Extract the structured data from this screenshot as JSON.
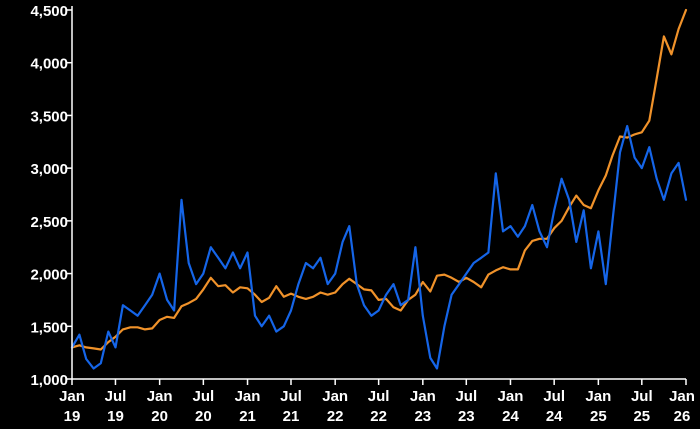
{
  "chart_data": {
    "type": "line",
    "title": "",
    "xlabel": "",
    "ylabel": "",
    "xlim": [
      "2019-01-01",
      "2026-01-01"
    ],
    "ylim": [
      1000,
      4500
    ],
    "grid": false,
    "legend": "none",
    "y_ticks": [
      {
        "value": 1000,
        "label": "1,000"
      },
      {
        "value": 1500,
        "label": "1,500"
      },
      {
        "value": 2000,
        "label": "2,000"
      },
      {
        "value": 2500,
        "label": "2,500"
      },
      {
        "value": 3000,
        "label": "3,000"
      },
      {
        "value": 3500,
        "label": "3,500"
      },
      {
        "value": 4000,
        "label": "4,000"
      },
      {
        "value": 4500,
        "label": "4,500"
      }
    ],
    "x_ticks": [
      {
        "date": "2019-01-01",
        "month": "Jan",
        "year": "19"
      },
      {
        "date": "2019-07-01",
        "month": "Jul",
        "year": "19"
      },
      {
        "date": "2020-01-01",
        "month": "Jan",
        "year": "20"
      },
      {
        "date": "2020-07-01",
        "month": "Jul",
        "year": "20"
      },
      {
        "date": "2021-01-01",
        "month": "Jan",
        "year": "21"
      },
      {
        "date": "2021-07-01",
        "month": "Jul",
        "year": "21"
      },
      {
        "date": "2022-01-01",
        "month": "Jan",
        "year": "22"
      },
      {
        "date": "2022-07-01",
        "month": "Jul",
        "year": "22"
      },
      {
        "date": "2023-01-01",
        "month": "Jan",
        "year": "23"
      },
      {
        "date": "2023-07-01",
        "month": "Jul",
        "year": "23"
      },
      {
        "date": "2024-01-01",
        "month": "Jan",
        "year": "24"
      },
      {
        "date": "2024-07-01",
        "month": "Jul",
        "year": "24"
      },
      {
        "date": "2025-01-01",
        "month": "Jan",
        "year": "25"
      },
      {
        "date": "2025-07-01",
        "month": "Jul",
        "year": "25"
      },
      {
        "date": "2026-01-01",
        "month": "Jan",
        "year": "26"
      }
    ],
    "series": [
      {
        "color": "#f0922a",
        "points": [
          [
            "2019-01-01",
            1300
          ],
          [
            "2019-02-01",
            1320
          ],
          [
            "2019-03-01",
            1300
          ],
          [
            "2019-04-01",
            1290
          ],
          [
            "2019-05-01",
            1280
          ],
          [
            "2019-06-01",
            1350
          ],
          [
            "2019-07-01",
            1400
          ],
          [
            "2019-08-01",
            1470
          ],
          [
            "2019-09-01",
            1490
          ],
          [
            "2019-10-01",
            1490
          ],
          [
            "2019-11-01",
            1470
          ],
          [
            "2019-12-01",
            1480
          ],
          [
            "2020-01-01",
            1560
          ],
          [
            "2020-02-01",
            1590
          ],
          [
            "2020-03-01",
            1580
          ],
          [
            "2020-04-01",
            1690
          ],
          [
            "2020-05-01",
            1720
          ],
          [
            "2020-06-01",
            1760
          ],
          [
            "2020-07-01",
            1850
          ],
          [
            "2020-08-01",
            1960
          ],
          [
            "2020-09-01",
            1880
          ],
          [
            "2020-10-01",
            1890
          ],
          [
            "2020-11-01",
            1820
          ],
          [
            "2020-12-01",
            1870
          ],
          [
            "2021-01-01",
            1860
          ],
          [
            "2021-02-01",
            1800
          ],
          [
            "2021-03-01",
            1730
          ],
          [
            "2021-04-01",
            1770
          ],
          [
            "2021-05-01",
            1880
          ],
          [
            "2021-06-01",
            1780
          ],
          [
            "2021-07-01",
            1810
          ],
          [
            "2021-08-01",
            1780
          ],
          [
            "2021-09-01",
            1760
          ],
          [
            "2021-10-01",
            1780
          ],
          [
            "2021-11-01",
            1820
          ],
          [
            "2021-12-01",
            1800
          ],
          [
            "2022-01-01",
            1820
          ],
          [
            "2022-02-01",
            1900
          ],
          [
            "2022-03-01",
            1950
          ],
          [
            "2022-04-01",
            1900
          ],
          [
            "2022-05-01",
            1850
          ],
          [
            "2022-06-01",
            1840
          ],
          [
            "2022-07-01",
            1750
          ],
          [
            "2022-08-01",
            1760
          ],
          [
            "2022-09-01",
            1680
          ],
          [
            "2022-10-01",
            1650
          ],
          [
            "2022-11-01",
            1750
          ],
          [
            "2022-12-01",
            1800
          ],
          [
            "2023-01-01",
            1920
          ],
          [
            "2023-02-01",
            1830
          ],
          [
            "2023-03-01",
            1980
          ],
          [
            "2023-04-01",
            1990
          ],
          [
            "2023-05-01",
            1960
          ],
          [
            "2023-06-01",
            1920
          ],
          [
            "2023-07-01",
            1960
          ],
          [
            "2023-08-01",
            1920
          ],
          [
            "2023-09-01",
            1870
          ],
          [
            "2023-10-01",
            1990
          ],
          [
            "2023-11-01",
            2030
          ],
          [
            "2023-12-01",
            2060
          ],
          [
            "2024-01-01",
            2040
          ],
          [
            "2024-02-01",
            2040
          ],
          [
            "2024-03-01",
            2220
          ],
          [
            "2024-04-01",
            2310
          ],
          [
            "2024-05-01",
            2330
          ],
          [
            "2024-06-01",
            2330
          ],
          [
            "2024-07-01",
            2430
          ],
          [
            "2024-08-01",
            2500
          ],
          [
            "2024-09-01",
            2630
          ],
          [
            "2024-10-01",
            2740
          ],
          [
            "2024-11-01",
            2650
          ],
          [
            "2024-12-01",
            2620
          ],
          [
            "2025-01-01",
            2790
          ],
          [
            "2025-02-01",
            2930
          ],
          [
            "2025-03-01",
            3120
          ],
          [
            "2025-04-01",
            3300
          ],
          [
            "2025-05-01",
            3290
          ],
          [
            "2025-06-01",
            3320
          ],
          [
            "2025-07-01",
            3340
          ],
          [
            "2025-08-01",
            3450
          ],
          [
            "2025-09-01",
            3850
          ],
          [
            "2025-10-01",
            4250
          ],
          [
            "2025-11-01",
            4080
          ],
          [
            "2025-12-01",
            4320
          ],
          [
            "2026-01-01",
            4500
          ]
        ]
      },
      {
        "color": "#1565e8",
        "points": [
          [
            "2019-01-01",
            1300
          ],
          [
            "2019-02-01",
            1420
          ],
          [
            "2019-03-01",
            1190
          ],
          [
            "2019-04-01",
            1100
          ],
          [
            "2019-05-01",
            1150
          ],
          [
            "2019-06-01",
            1450
          ],
          [
            "2019-07-01",
            1300
          ],
          [
            "2019-08-01",
            1700
          ],
          [
            "2019-09-01",
            1650
          ],
          [
            "2019-10-01",
            1600
          ],
          [
            "2019-11-01",
            1700
          ],
          [
            "2019-12-01",
            1800
          ],
          [
            "2020-01-01",
            2000
          ],
          [
            "2020-02-01",
            1750
          ],
          [
            "2020-03-01",
            1650
          ],
          [
            "2020-04-01",
            2700
          ],
          [
            "2020-05-01",
            2100
          ],
          [
            "2020-06-01",
            1900
          ],
          [
            "2020-07-01",
            2000
          ],
          [
            "2020-08-01",
            2250
          ],
          [
            "2020-09-01",
            2150
          ],
          [
            "2020-10-01",
            2050
          ],
          [
            "2020-11-01",
            2200
          ],
          [
            "2020-12-01",
            2050
          ],
          [
            "2021-01-01",
            2200
          ],
          [
            "2021-02-01",
            1600
          ],
          [
            "2021-03-01",
            1500
          ],
          [
            "2021-04-01",
            1600
          ],
          [
            "2021-05-01",
            1450
          ],
          [
            "2021-06-01",
            1500
          ],
          [
            "2021-07-01",
            1650
          ],
          [
            "2021-08-01",
            1900
          ],
          [
            "2021-09-01",
            2100
          ],
          [
            "2021-10-01",
            2050
          ],
          [
            "2021-11-01",
            2150
          ],
          [
            "2021-12-01",
            1900
          ],
          [
            "2022-01-01",
            2000
          ],
          [
            "2022-02-01",
            2300
          ],
          [
            "2022-03-01",
            2450
          ],
          [
            "2022-04-01",
            1900
          ],
          [
            "2022-05-01",
            1700
          ],
          [
            "2022-06-01",
            1600
          ],
          [
            "2022-07-01",
            1650
          ],
          [
            "2022-08-01",
            1800
          ],
          [
            "2022-09-01",
            1900
          ],
          [
            "2022-10-01",
            1700
          ],
          [
            "2022-11-01",
            1750
          ],
          [
            "2022-12-01",
            2250
          ],
          [
            "2023-01-01",
            1600
          ],
          [
            "2023-02-01",
            1200
          ],
          [
            "2023-03-01",
            1100
          ],
          [
            "2023-04-01",
            1500
          ],
          [
            "2023-05-01",
            1800
          ],
          [
            "2023-06-01",
            1900
          ],
          [
            "2023-07-01",
            2000
          ],
          [
            "2023-08-01",
            2100
          ],
          [
            "2023-09-01",
            2150
          ],
          [
            "2023-10-01",
            2200
          ],
          [
            "2023-11-01",
            2950
          ],
          [
            "2023-12-01",
            2400
          ],
          [
            "2024-01-01",
            2450
          ],
          [
            "2024-02-01",
            2350
          ],
          [
            "2024-03-01",
            2450
          ],
          [
            "2024-04-01",
            2650
          ],
          [
            "2024-05-01",
            2400
          ],
          [
            "2024-06-01",
            2250
          ],
          [
            "2024-07-01",
            2600
          ],
          [
            "2024-08-01",
            2900
          ],
          [
            "2024-09-01",
            2700
          ],
          [
            "2024-10-01",
            2300
          ],
          [
            "2024-11-01",
            2600
          ],
          [
            "2024-12-01",
            2050
          ],
          [
            "2025-01-01",
            2400
          ],
          [
            "2025-02-01",
            1900
          ],
          [
            "2025-03-01",
            2500
          ],
          [
            "2025-04-01",
            3150
          ],
          [
            "2025-05-01",
            3400
          ],
          [
            "2025-06-01",
            3100
          ],
          [
            "2025-07-01",
            3000
          ],
          [
            "2025-08-01",
            3200
          ],
          [
            "2025-09-01",
            2900
          ],
          [
            "2025-10-01",
            2700
          ],
          [
            "2025-11-01",
            2950
          ],
          [
            "2025-12-01",
            3050
          ],
          [
            "2026-01-01",
            2700
          ]
        ]
      }
    ]
  }
}
